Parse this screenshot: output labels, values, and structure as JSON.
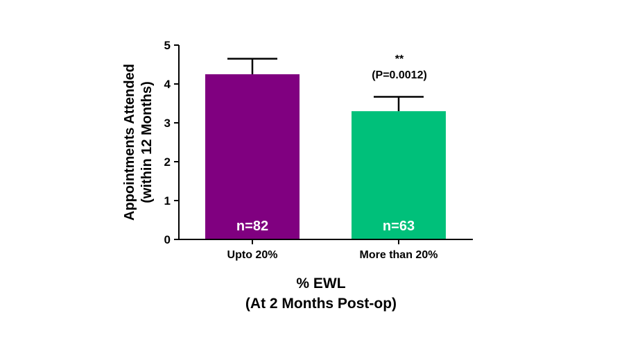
{
  "chart_data": {
    "type": "bar",
    "categories": [
      "Upto 20%",
      "More than 20%"
    ],
    "values": [
      4.25,
      3.3
    ],
    "error_upper": [
      0.4,
      0.37
    ],
    "bar_labels": [
      "n=82",
      "n=63"
    ],
    "colors": [
      "#800080",
      "#00C07A"
    ],
    "ylim": [
      0,
      5
    ],
    "yticks": [
      "0",
      "1",
      "2",
      "3",
      "4",
      "5"
    ],
    "ylabel_line1": "Appointments Attended",
    "ylabel_line2": "(within 12 Months)",
    "xlabel_line1": "% EWL",
    "xlabel_line2": "(At 2 Months Post-op)",
    "annotations": {
      "significance": "**",
      "p_value": "(P=0.0012)"
    },
    "grid": false,
    "legend": "none"
  }
}
